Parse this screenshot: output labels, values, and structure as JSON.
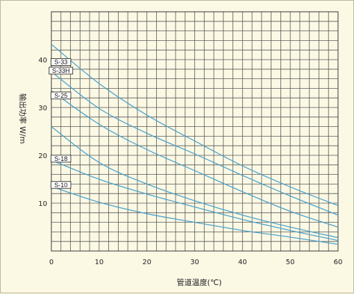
{
  "chart_data": {
    "type": "line",
    "xlabel": "管道温度(℃)",
    "ylabel": "输出功率 W/m",
    "xlim": [
      0,
      60
    ],
    "ylim": [
      0,
      50
    ],
    "x_ticks": [
      "0",
      "10",
      "20",
      "30",
      "40",
      "50",
      "60"
    ],
    "y_ticks": [
      "10",
      "20",
      "30",
      "40"
    ],
    "grid": true,
    "line_color": "#4aa3cc",
    "series": [
      {
        "name": "S-33",
        "x": [
          0,
          10,
          20,
          30,
          40,
          50,
          60
        ],
        "y": [
          43.2,
          35.0,
          28.4,
          23.0,
          17.8,
          13.4,
          9.5
        ]
      },
      {
        "name": "S-33H",
        "x": [
          0,
          10,
          20,
          30,
          40,
          50,
          60
        ],
        "y": [
          37.5,
          29.8,
          24.6,
          20.3,
          15.8,
          11.5,
          7.5
        ]
      },
      {
        "name": "S-25",
        "x": [
          0,
          10,
          20,
          30,
          40,
          50,
          60
        ],
        "y": [
          33.5,
          26.5,
          21.2,
          16.8,
          12.4,
          8.3,
          5.0
        ]
      },
      {
        "name": "S-18",
        "x": [
          0,
          10,
          20,
          30,
          40,
          50,
          60
        ],
        "y": [
          26.0,
          18.5,
          14.0,
          10.5,
          7.5,
          5.0,
          2.8
        ]
      },
      {
        "name": "S-10",
        "x": [
          0,
          10,
          20,
          30,
          40,
          50,
          60
        ],
        "y": [
          19.0,
          15.0,
          11.9,
          9.2,
          6.6,
          4.3,
          2.2
        ]
      },
      {
        "name": "",
        "x": [
          0,
          10,
          20,
          30,
          40,
          50,
          60
        ],
        "y": [
          13.5,
          10.2,
          7.8,
          6.0,
          4.3,
          2.9,
          1.4
        ]
      }
    ],
    "labels": [
      {
        "text": "S-33",
        "x": 2,
        "y": 39.5
      },
      {
        "text": "S-33H",
        "x": 2,
        "y": 37.7
      },
      {
        "text": "S-25",
        "x": 2,
        "y": 32.5
      },
      {
        "text": "S-18",
        "x": 2,
        "y": 19.3
      },
      {
        "text": "S-10",
        "x": 2,
        "y": 13.8
      }
    ]
  }
}
